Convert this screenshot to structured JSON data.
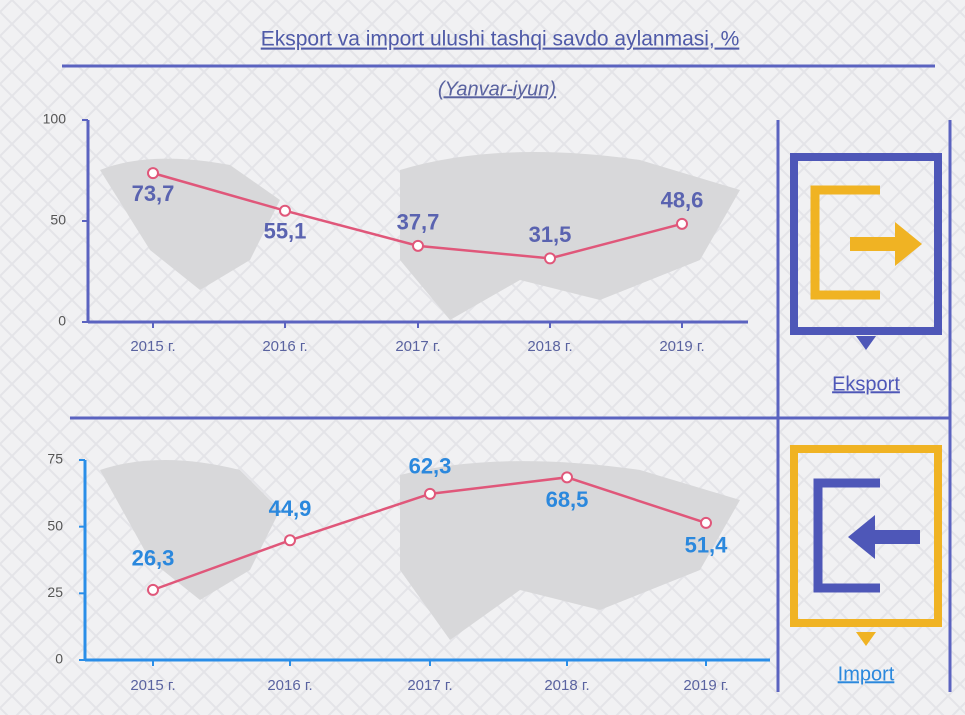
{
  "title": "Eksport va import ulushi tashqi savdo aylanmasi, %",
  "subtitle": "(Yanvar-iyun)",
  "chart_data": [
    {
      "type": "line",
      "name": "Eksport",
      "categories": [
        "2015 г.",
        "2016 г.",
        "2017 г.",
        "2018 г.",
        "2019 г."
      ],
      "values": [
        73.7,
        55.1,
        37.7,
        31.5,
        48.6
      ],
      "value_labels": [
        "73,7",
        "55,1",
        "37,7",
        "31,5",
        "48,6"
      ],
      "color": "#e0577a",
      "label_color": "#5a63b0",
      "axis_color": "#5b63c0",
      "ylim": [
        0,
        100
      ],
      "yticks": [
        0,
        50,
        100
      ]
    },
    {
      "type": "line",
      "name": "Import",
      "categories": [
        "2015 г.",
        "2016 г.",
        "2017 г.",
        "2018 г.",
        "2019 г."
      ],
      "values": [
        26.3,
        44.9,
        62.3,
        68.5,
        51.4
      ],
      "value_labels": [
        "26,3",
        "44,9",
        "62,3",
        "68,5",
        "51,4"
      ],
      "color": "#e0577a",
      "label_color": "#2b88dd",
      "axis_color": "#2a8ee8",
      "ylim": [
        0,
        75
      ],
      "yticks": [
        0,
        25,
        50,
        75
      ]
    }
  ]
}
